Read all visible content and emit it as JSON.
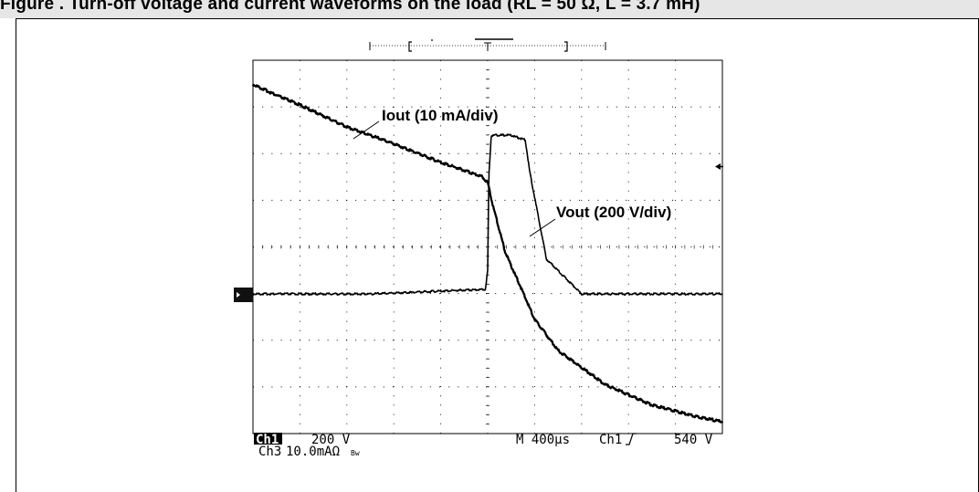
{
  "figure": {
    "title": "Figure . Turn-off voltage and current waveforms on the load (RL = 50 Ω, L = 3.7 mH)"
  },
  "chart_data": {
    "type": "line",
    "title": "",
    "xlabel": "",
    "ylabel": "",
    "grid": true,
    "divisions": {
      "x": 10,
      "y": 8
    },
    "timebase_label": "M 400µs",
    "trigger_source_label": "Ch1",
    "trigger_level_label": "540 V",
    "channels": [
      {
        "badge": "Ch1",
        "scale_label": "200 V"
      },
      {
        "badge": "Ch3",
        "scale_label": "10.0mAΩ",
        "suffix": "Bw"
      }
    ],
    "series": [
      {
        "name": "Vout (200 V/div)",
        "unit": "V",
        "x_us": [
          0,
          1000,
          1980,
          2000,
          2010,
          2030,
          2200,
          2320,
          2360,
          2500,
          2800,
          3200,
          4000
        ],
        "y": [
          0,
          0,
          20,
          100,
          500,
          680,
          680,
          660,
          520,
          150,
          0,
          0,
          0
        ]
      },
      {
        "name": "Iout (10 mA/div)",
        "unit": "mA",
        "x_us": [
          0,
          200,
          400,
          800,
          1200,
          1600,
          1950,
          2000,
          2050,
          2150,
          2300,
          2400,
          2600,
          3000,
          3400,
          3800,
          4000
        ],
        "y": [
          44.5,
          42.2,
          40.1,
          35.4,
          31.8,
          27.8,
          24.8,
          23.5,
          18,
          8.5,
          0,
          -5.8,
          -12.5,
          -19.8,
          -24.2,
          -26.8,
          -27.8
        ]
      }
    ],
    "annotations": [
      {
        "text": "Iout (10 mA/div)"
      },
      {
        "text": "Vout (200 V/div)"
      }
    ]
  }
}
